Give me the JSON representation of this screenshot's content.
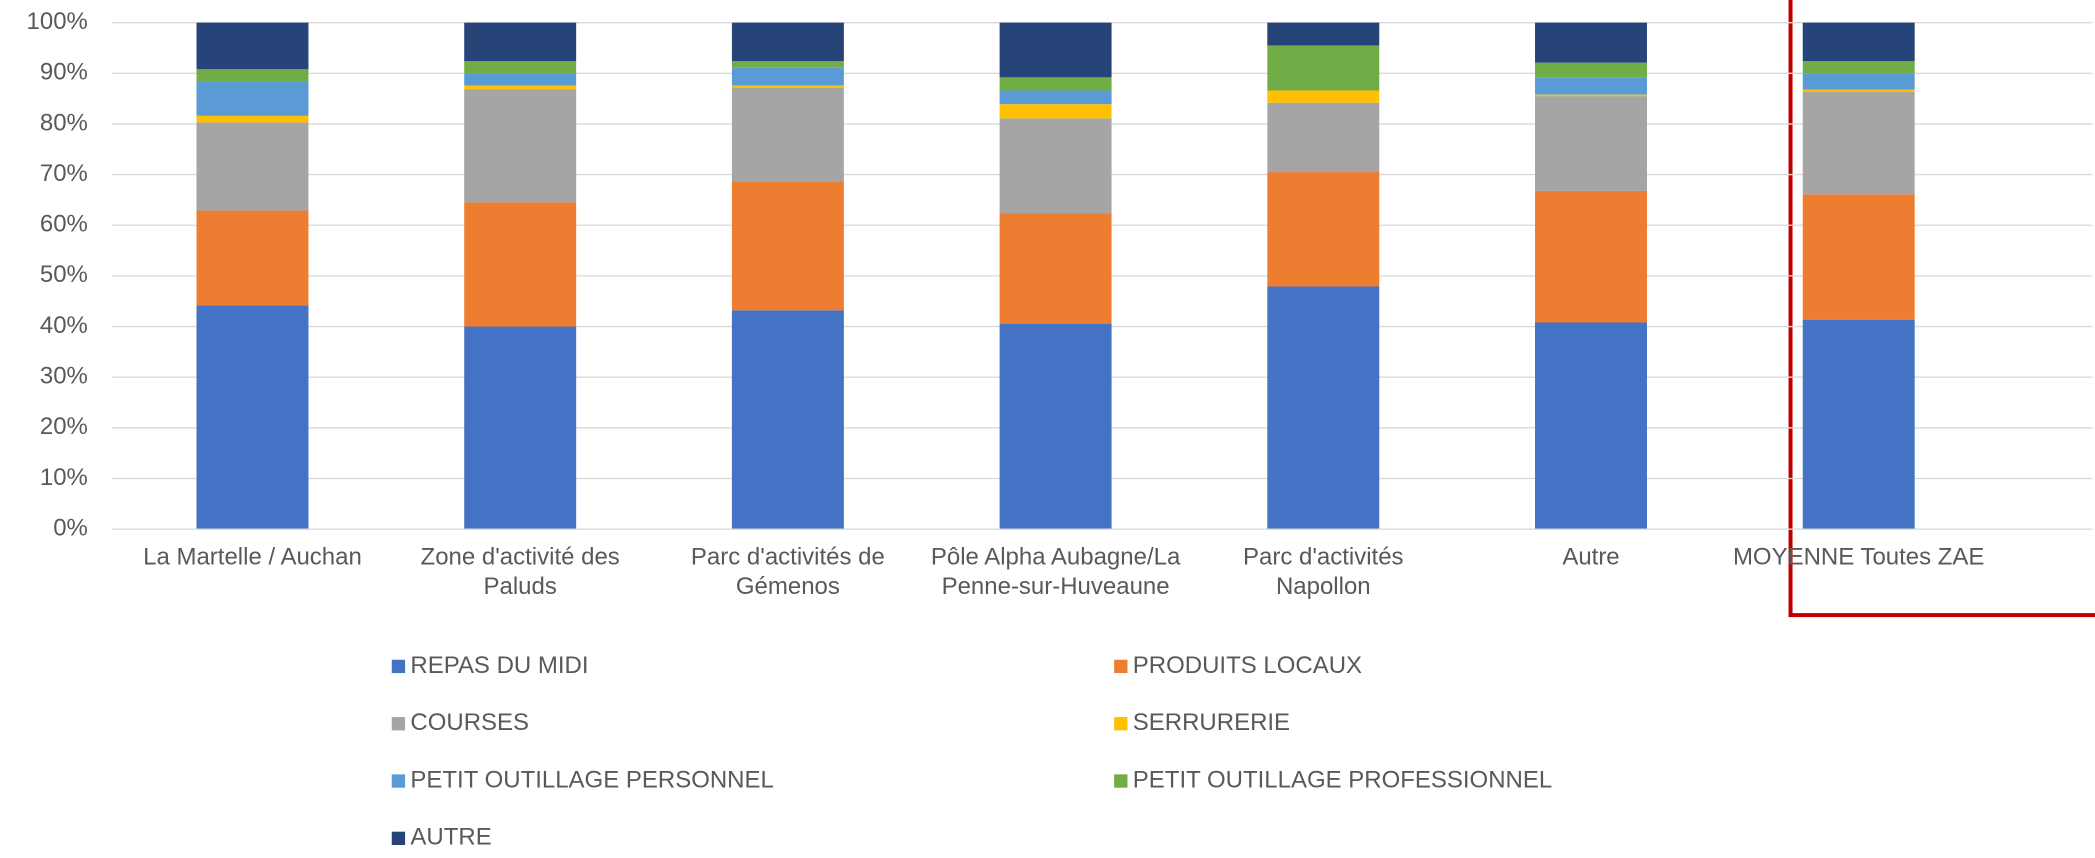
{
  "chart_data": {
    "type": "stacked_bar",
    "categories": [
      "La Martelle / Auchan",
      "Zone d'activité des Paluds",
      "Parc d'activités de Gémenos",
      "Pôle Alpha Aubagne/La Penne-sur-Huveaune",
      "Parc d'activités Napollon",
      "Autre",
      "MOYENNE Toutes ZAE"
    ],
    "series": [
      {
        "name": "REPAS DU MIDI",
        "color": "#4472c4",
        "values": [
          44.2,
          40.0,
          43.2,
          40.5,
          47.9,
          40.8,
          41.3
        ]
      },
      {
        "name": "PRODUITS LOCAUX",
        "color": "#ed7d31",
        "values": [
          18.7,
          24.5,
          25.5,
          21.9,
          22.6,
          26.0,
          24.8
        ]
      },
      {
        "name": "COURSES",
        "color": "#a5a5a5",
        "values": [
          17.4,
          22.3,
          18.4,
          18.7,
          13.7,
          18.7,
          20.2
        ]
      },
      {
        "name": "SERRURERIE",
        "color": "#ffc000",
        "values": [
          1.3,
          0.8,
          0.5,
          2.8,
          2.4,
          0.3,
          0.5
        ]
      },
      {
        "name": "PETIT OUTILLAGE PERSONNEL",
        "color": "#5b9bd5",
        "values": [
          6.8,
          2.4,
          3.5,
          2.7,
          0,
          3.4,
          3.2
        ]
      },
      {
        "name": "PETIT OUTILLAGE PROFESSIONNEL",
        "color": "#70ad47",
        "values": [
          2.4,
          2.4,
          1.3,
          2.6,
          8.9,
          2.9,
          2.4
        ]
      },
      {
        "name": "AUTRE",
        "color": "#264478",
        "values": [
          9.2,
          7.6,
          7.6,
          10.8,
          4.5,
          7.9,
          7.6
        ]
      }
    ],
    "ylim": [
      0,
      100
    ],
    "yticks": [
      {
        "value": 0,
        "label": "0%"
      },
      {
        "value": 10,
        "label": "10%"
      },
      {
        "value": 20,
        "label": "20%"
      },
      {
        "value": 30,
        "label": "30%"
      },
      {
        "value": 40,
        "label": "40%"
      },
      {
        "value": 50,
        "label": "50%"
      },
      {
        "value": 60,
        "label": "60%"
      },
      {
        "value": 70,
        "label": "70%"
      },
      {
        "value": 80,
        "label": "80%"
      },
      {
        "value": 90,
        "label": "90%"
      },
      {
        "value": 100,
        "label": "100%"
      }
    ],
    "grid": true
  }
}
